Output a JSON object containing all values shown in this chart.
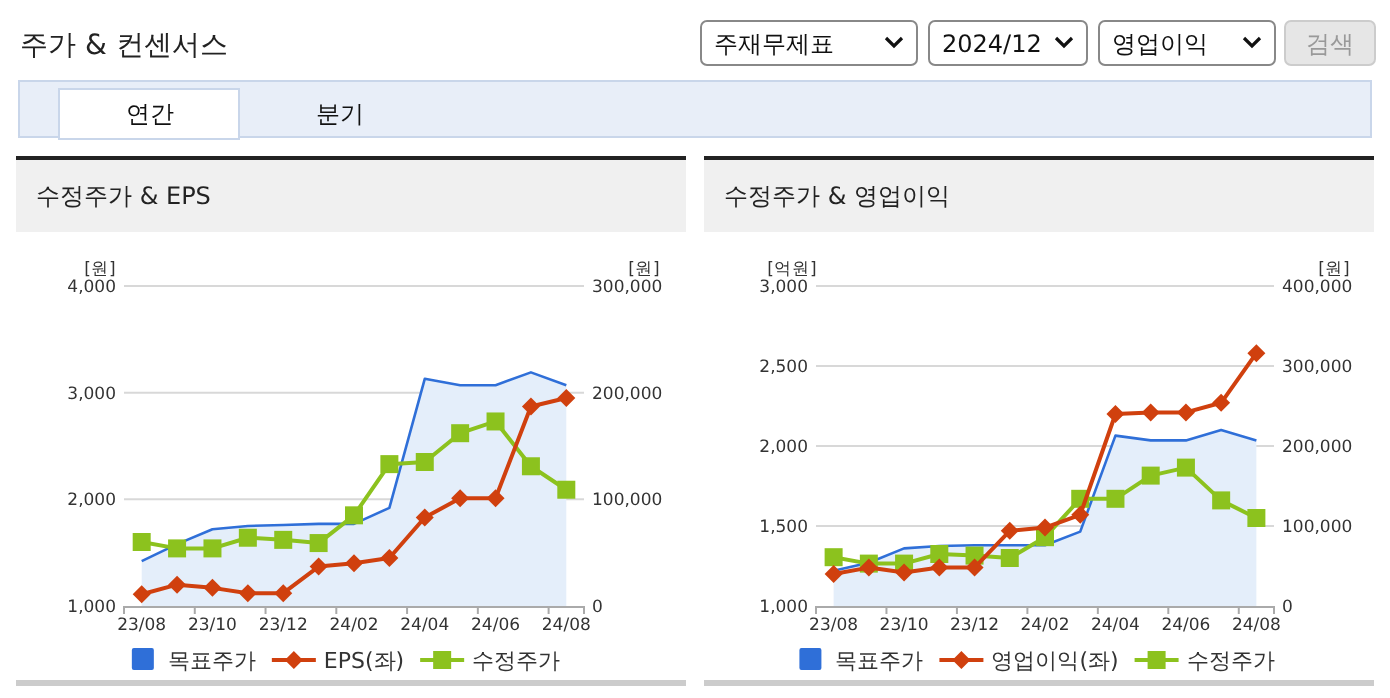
{
  "chart_data": [
    {
      "type": "line",
      "title": "수정주가 & EPS",
      "ylabel": "[원]",
      "y2label": "[원]",
      "annotations": [
        "주가 & 컨센서스",
        "주재무제표",
        "2024/12",
        "영업이익",
        "검색",
        "연간",
        "분기"
      ],
      "categories": [
        "23/08",
        null,
        "23/10",
        null,
        "23/12",
        null,
        "24/02",
        null,
        "24/04",
        null,
        "24/06",
        null,
        "24/08"
      ],
      "ylim": [
        1000,
        4000
      ],
      "yticks": [
        {
          "value": 1000,
          "label": "1,000"
        },
        {
          "value": 2000,
          "label": "2,000"
        },
        {
          "value": 3000,
          "label": "3,000"
        },
        {
          "value": 4000,
          "label": "4,000"
        }
      ],
      "y2lim": [
        0,
        300000
      ],
      "y2ticks": [
        0,
        {
          "value": 100000,
          "label": "100,000"
        },
        {
          "value": 200000,
          "label": "200,000"
        },
        {
          "value": 300000,
          "label": "300,000"
        }
      ],
      "grid": "y",
      "legend": "bottom",
      "series": [
        {
          "name": "목표주가",
          "type": "area",
          "axis": "y2",
          "color": "#2f6fd8",
          "marker": "none",
          "values": [
            42000,
            58000,
            72000,
            75000,
            76000,
            77000,
            77000,
            92000,
            213000,
            207000,
            207000,
            219000,
            207000
          ]
        },
        {
          "name": "EPS(좌)",
          "type": "line",
          "axis": "y",
          "color": "#d0400e",
          "marker": "diamond",
          "values": [
            1110,
            1200,
            1170,
            1120,
            1120,
            1370,
            1400,
            1450,
            1830,
            2010,
            2010,
            2870,
            2950
          ]
        },
        {
          "name": "수정주가",
          "type": "line",
          "axis": "y2",
          "color": "#8cc21e",
          "marker": "square",
          "values": [
            60000,
            54000,
            54000,
            64000,
            62000,
            59000,
            85000,
            133000,
            135000,
            162000,
            173000,
            131000,
            109000
          ]
        }
      ]
    },
    {
      "type": "line",
      "title": "수정주가 & 영업이익",
      "ylabel": "[억원]",
      "y2label": "[원]",
      "categories": [
        "23/08",
        null,
        "23/10",
        null,
        "23/12",
        null,
        "24/02",
        null,
        "24/04",
        null,
        "24/06",
        null,
        "24/08"
      ],
      "ylim": [
        1000,
        3000
      ],
      "yticks": [
        {
          "value": 1000,
          "label": "1,000"
        },
        {
          "value": 1500,
          "label": "1,500"
        },
        {
          "value": 2000,
          "label": "2,000"
        },
        {
          "value": 2500,
          "label": "2,500"
        },
        {
          "value": 3000,
          "label": "3,000"
        }
      ],
      "y2lim": [
        0,
        400000
      ],
      "y2ticks": [
        0,
        {
          "value": 100000,
          "label": "100,000"
        },
        {
          "value": 200000,
          "label": "200,000"
        },
        {
          "value": 300000,
          "label": "300,000"
        },
        {
          "value": 400000,
          "label": "400,000"
        }
      ],
      "grid": "y",
      "legend": "bottom",
      "series": [
        {
          "name": "목표주가",
          "type": "area",
          "axis": "y2",
          "color": "#2f6fd8",
          "marker": "none",
          "values": [
            44000,
            54000,
            72000,
            75000,
            76000,
            76000,
            76000,
            93000,
            213000,
            207000,
            207000,
            220000,
            207000
          ]
        },
        {
          "name": "영업이익(좌)",
          "type": "line",
          "axis": "y",
          "color": "#d0400e",
          "marker": "diamond",
          "values": [
            1200,
            1240,
            1210,
            1240,
            1240,
            1470,
            1490,
            1570,
            2200,
            2210,
            2210,
            2270,
            2580
          ]
        },
        {
          "name": "수정주가",
          "type": "line",
          "axis": "y2",
          "color": "#8cc21e",
          "marker": "square",
          "values": [
            61000,
            53000,
            53000,
            65000,
            63000,
            60000,
            86000,
            134000,
            134000,
            163000,
            173000,
            132000,
            110000
          ]
        }
      ]
    }
  ]
}
